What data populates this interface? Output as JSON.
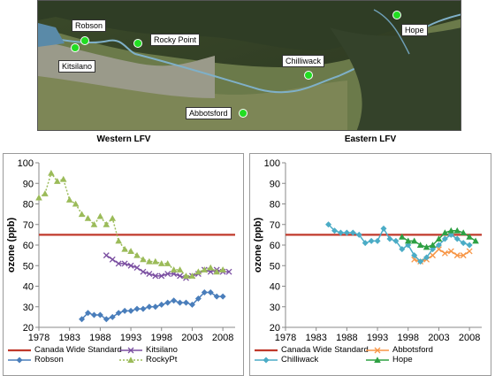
{
  "map": {
    "labels": [
      "Robson",
      "Kitsilano",
      "Rocky Point",
      "Chilliwack",
      "Abbotsford",
      "Hope"
    ]
  },
  "colors": {
    "standard": "#c0392b",
    "kitsilano": "#7b4fa1",
    "robson": "#4a7ebb",
    "rockypt": "#9bbb59",
    "abbotsford": "#f79646",
    "chilliwack": "#4bacc6",
    "hope": "#2ea043",
    "station": "#22dd22"
  },
  "chart_data": [
    {
      "type": "line",
      "title": "Western LFV",
      "ylabel": "ozone (ppb)",
      "xlim": [
        1978,
        2010
      ],
      "ylim": [
        20,
        100
      ],
      "xticks": [
        1978,
        1983,
        1988,
        1993,
        1998,
        2003,
        2008
      ],
      "yticks": [
        20,
        30,
        40,
        50,
        60,
        70,
        80,
        90,
        100
      ],
      "legend": "bottom",
      "series": [
        {
          "name": "Canada Wide Standard",
          "key": "standard",
          "marker": "none",
          "x": [
            1978,
            2010
          ],
          "y": [
            65,
            65
          ]
        },
        {
          "name": "Kitsilano",
          "key": "kitsilano",
          "marker": "x",
          "x": [
            1989,
            1990,
            1991,
            1992,
            1993,
            1994,
            1995,
            1996,
            1997,
            1998,
            1999,
            2000,
            2001,
            2002,
            2003,
            2004,
            2005,
            2006,
            2007,
            2008,
            2009
          ],
          "y": [
            55,
            53,
            51,
            51,
            50,
            49,
            47,
            46,
            45,
            45,
            46,
            46,
            45,
            44,
            45,
            46,
            48,
            47,
            48,
            47,
            47
          ]
        },
        {
          "name": "Robson",
          "key": "robson",
          "marker": "diamond",
          "x": [
            1985,
            1986,
            1987,
            1988,
            1989,
            1990,
            1991,
            1992,
            1993,
            1994,
            1995,
            1996,
            1997,
            1998,
            1999,
            2000,
            2001,
            2002,
            2003,
            2004,
            2005,
            2006,
            2007,
            2008
          ],
          "y": [
            24,
            27,
            26,
            26,
            24,
            25,
            27,
            28,
            28,
            29,
            29,
            30,
            30,
            31,
            32,
            33,
            32,
            32,
            31,
            34,
            37,
            37,
            35,
            35
          ]
        },
        {
          "name": "RockyPt",
          "key": "rockypt",
          "marker": "triangle",
          "x": [
            1978,
            1979,
            1980,
            1981,
            1982,
            1983,
            1984,
            1985,
            1986,
            1987,
            1988,
            1989,
            1990,
            1991,
            1992,
            1993,
            1994,
            1995,
            1996,
            1997,
            1998,
            1999,
            2000,
            2001,
            2002,
            2003,
            2004,
            2005,
            2006,
            2007,
            2008
          ],
          "y": [
            83,
            85,
            95,
            91,
            92,
            82,
            80,
            75,
            73,
            70,
            74,
            70,
            73,
            62,
            58,
            57,
            55,
            53,
            52,
            52,
            51,
            51,
            48,
            48,
            45,
            45,
            47,
            48,
            49,
            47,
            48
          ]
        }
      ]
    },
    {
      "type": "line",
      "title": "Eastern LFV",
      "ylabel": "ozone (ppb)",
      "xlim": [
        1978,
        2010
      ],
      "ylim": [
        20,
        100
      ],
      "xticks": [
        1978,
        1983,
        1988,
        1993,
        1998,
        2003,
        2008
      ],
      "yticks": [
        20,
        30,
        40,
        50,
        60,
        70,
        80,
        90,
        100
      ],
      "legend": "bottom",
      "series": [
        {
          "name": "Canada Wide Standard",
          "key": "standard",
          "marker": "none",
          "x": [
            1978,
            2010
          ],
          "y": [
            65,
            65
          ]
        },
        {
          "name": "Abbotsford",
          "key": "abbotsford",
          "marker": "x",
          "x": [
            1999,
            2000,
            2001,
            2002,
            2003,
            2004,
            2005,
            2006,
            2007,
            2008
          ],
          "y": [
            53,
            52,
            53,
            55,
            58,
            56,
            57,
            55,
            55,
            57
          ]
        },
        {
          "name": "Chilliwack",
          "key": "chilliwack",
          "marker": "diamond",
          "x": [
            1985,
            1986,
            1987,
            1988,
            1989,
            1990,
            1991,
            1992,
            1993,
            1994,
            1995,
            1996,
            1997,
            1998,
            1999,
            2000,
            2001,
            2002,
            2003,
            2004,
            2005,
            2006,
            2007,
            2008
          ],
          "y": [
            70,
            67,
            66,
            66,
            66,
            65,
            61,
            62,
            62,
            68,
            63,
            62,
            58,
            60,
            55,
            52,
            54,
            58,
            60,
            63,
            65,
            63,
            61,
            60
          ]
        },
        {
          "name": "Hope",
          "key": "hope",
          "marker": "triangle",
          "x": [
            1997,
            1998,
            1999,
            2000,
            2001,
            2002,
            2003,
            2004,
            2005,
            2006,
            2007,
            2008,
            2009
          ],
          "y": [
            64,
            62,
            62,
            60,
            59,
            60,
            63,
            66,
            67,
            67,
            66,
            64,
            62
          ]
        }
      ]
    }
  ]
}
